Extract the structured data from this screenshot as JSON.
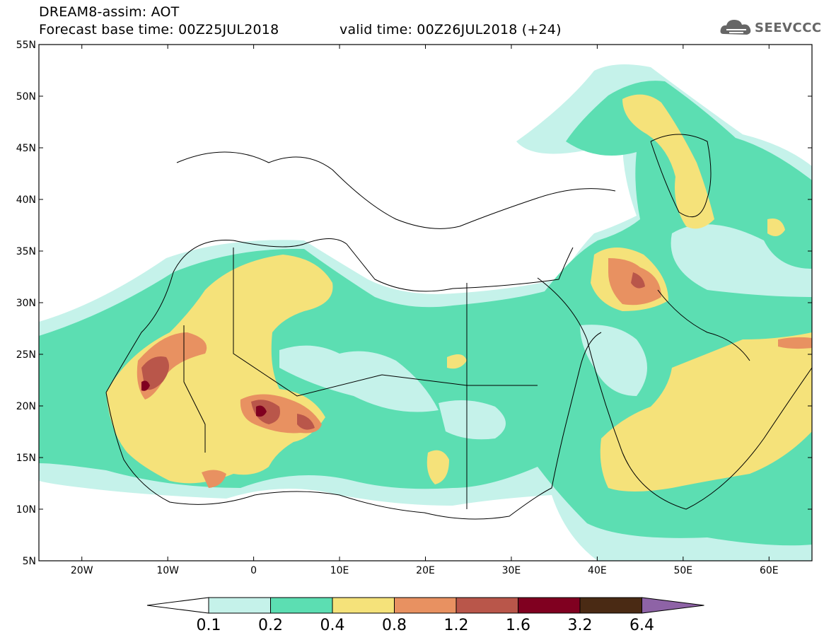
{
  "header": {
    "line1": "DREAM8-assim: AOT",
    "base_time": "Forecast base time: 00Z25JUL2018",
    "valid_time": "valid time: 00Z26JUL2018 (+24)"
  },
  "logo": {
    "text": "SEEVCCC",
    "icon": "cloud-icon"
  },
  "map": {
    "lon_range": [
      -25,
      65
    ],
    "lat_range": [
      5,
      55
    ],
    "lat_ticks": [
      "5N",
      "10N",
      "15N",
      "20N",
      "25N",
      "30N",
      "35N",
      "40N",
      "45N",
      "50N",
      "55N"
    ],
    "lon_ticks": [
      "20W",
      "10W",
      "0",
      "10E",
      "20E",
      "30E",
      "40E",
      "50E",
      "60E"
    ]
  },
  "colorbar": {
    "labels": [
      "0.1",
      "0.2",
      "0.4",
      "0.8",
      "1.2",
      "1.6",
      "3.2",
      "6.4"
    ],
    "colors": [
      "#ffffff",
      "#c5f2ea",
      "#5cdeb2",
      "#f5e27a",
      "#e89161",
      "#b9564a",
      "#800020",
      "#4a2a14",
      "#8e63a6"
    ]
  }
}
